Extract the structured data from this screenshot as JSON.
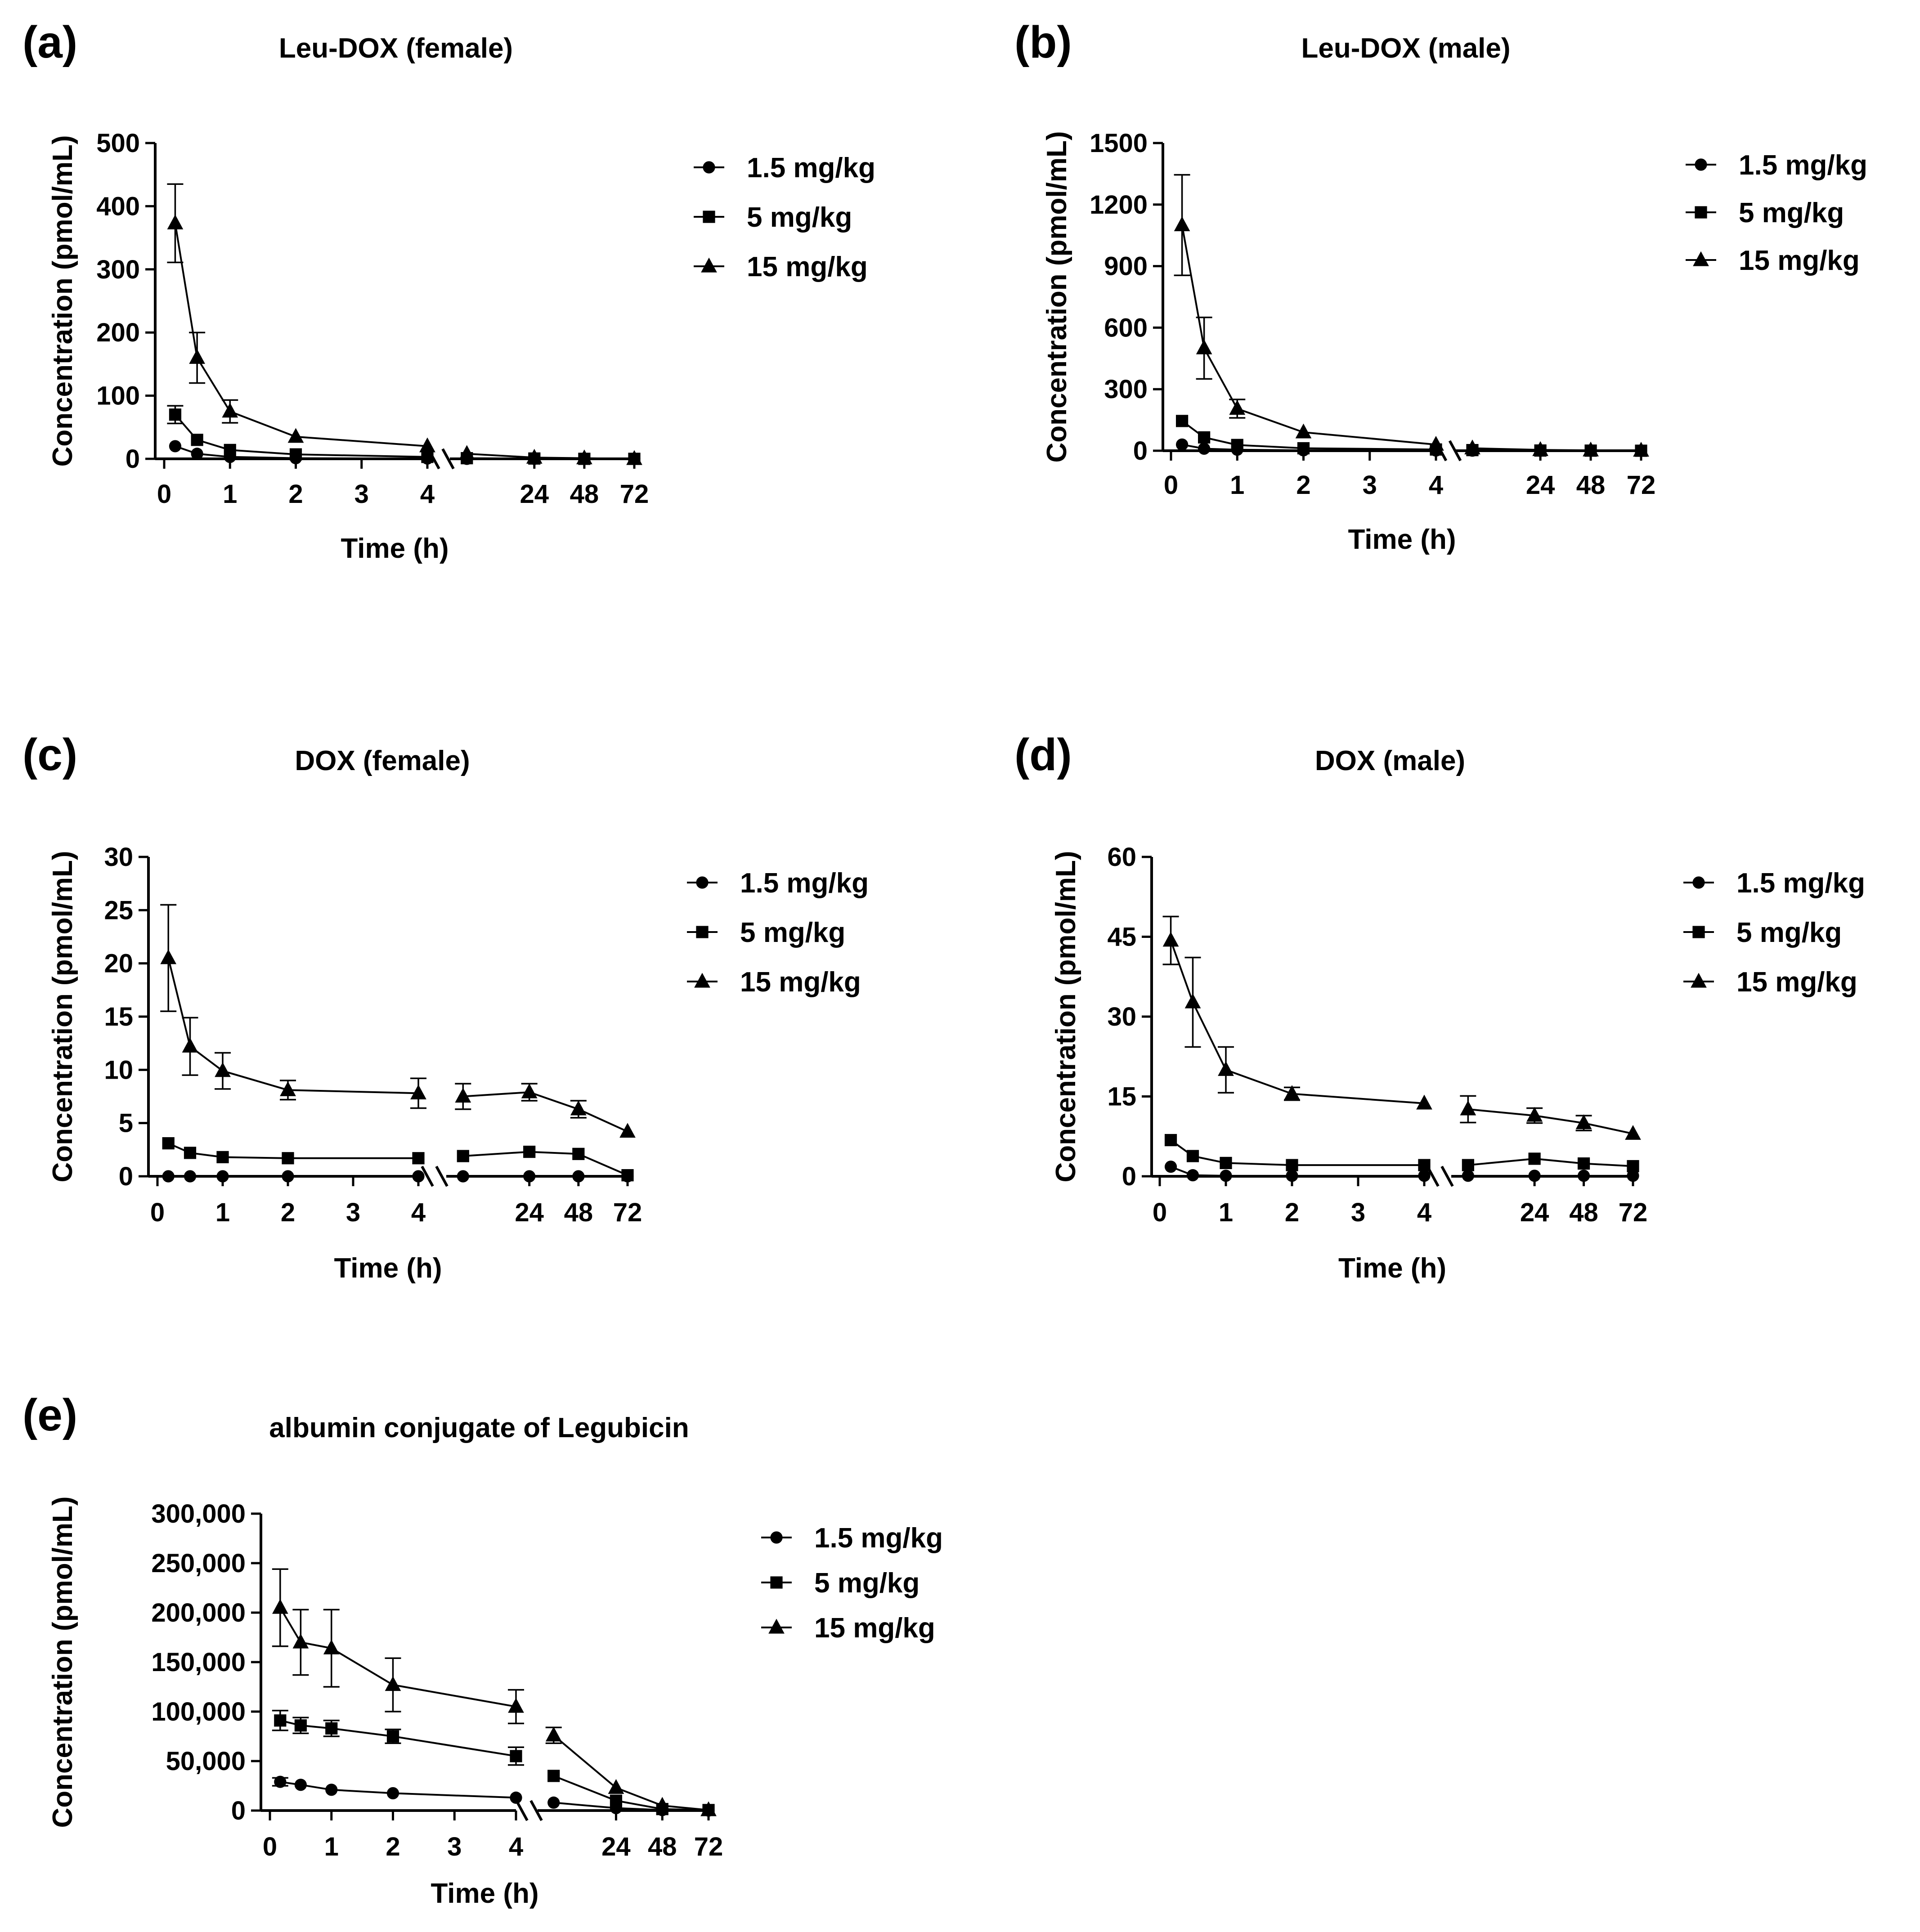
{
  "figure": {
    "panels": [
      {
        "label": "(a)",
        "title": "Leu-DOX (female)"
      },
      {
        "label": "(b)",
        "title": "Leu-DOX (male)"
      },
      {
        "label": "(c)",
        "title": "DOX (female)"
      },
      {
        "label": "(d)",
        "title": "DOX (male)"
      },
      {
        "label": "(e)",
        "title": "albumin conjugate of Legubicin"
      }
    ]
  },
  "colors": {
    "ink": "#000000",
    "background": "#ffffff"
  },
  "chart_data": [
    {
      "type": "line",
      "panel": "(a)",
      "title": "Leu-DOX (female)",
      "xlabel": "Time (h)",
      "ylabel": "Concentration (pmol/mL)",
      "x_axis": "broken",
      "x_segment1_range": [
        0,
        4
      ],
      "x_segment1_ticks": [
        "0",
        "1",
        "2",
        "3",
        "4"
      ],
      "x_segment2_ticks": [
        "24",
        "48",
        "72"
      ],
      "ylim": [
        0,
        500
      ],
      "yticks": [
        "0",
        "100",
        "200",
        "300",
        "400",
        "500"
      ],
      "x": [
        0.167,
        0.5,
        1,
        2,
        4,
        8,
        24,
        48,
        72
      ],
      "legend_position": "right",
      "series": [
        {
          "name": "1.5 mg/kg",
          "marker": "circle",
          "values": [
            20,
            8,
            3,
            1,
            0.5,
            0,
            0,
            0,
            0
          ],
          "error": [
            0,
            0,
            0,
            0,
            0,
            0,
            0,
            0,
            0
          ]
        },
        {
          "name": "5 mg/kg",
          "marker": "square",
          "values": [
            70,
            30,
            14,
            7,
            3,
            1,
            0.5,
            0,
            0
          ],
          "error": [
            14,
            0,
            0,
            0,
            0,
            0,
            0,
            0,
            0
          ]
        },
        {
          "name": "15 mg/kg",
          "marker": "triangle",
          "values": [
            373,
            160,
            75,
            35,
            20,
            8,
            2,
            1,
            0
          ],
          "error": [
            62,
            40,
            18,
            0,
            0,
            0,
            0,
            0,
            0
          ]
        }
      ]
    },
    {
      "type": "line",
      "panel": "(b)",
      "title": "Leu-DOX (male)",
      "xlabel": "Time (h)",
      "ylabel": "Concentration (pmol/mL)",
      "x_axis": "broken",
      "x_segment1_range": [
        0,
        4
      ],
      "x_segment1_ticks": [
        "0",
        "1",
        "2",
        "3",
        "4"
      ],
      "x_segment2_ticks": [
        "24",
        "48",
        "72"
      ],
      "ylim": [
        0,
        1500
      ],
      "yticks": [
        "0",
        "300",
        "600",
        "900",
        "1200",
        "1500"
      ],
      "x": [
        0.167,
        0.5,
        1,
        2,
        4,
        8,
        24,
        48,
        72
      ],
      "legend_position": "right",
      "series": [
        {
          "name": "1.5 mg/kg",
          "marker": "circle",
          "values": [
            30,
            10,
            5,
            2,
            1,
            0.5,
            0,
            0,
            0
          ],
          "error": [
            0,
            0,
            0,
            0,
            0,
            0,
            0,
            0,
            0
          ]
        },
        {
          "name": "5 mg/kg",
          "marker": "square",
          "values": [
            145,
            65,
            28,
            12,
            6,
            3,
            1,
            0.5,
            0
          ],
          "error": [
            0,
            0,
            0,
            0,
            0,
            0,
            0,
            0,
            0
          ]
        },
        {
          "name": "15 mg/kg",
          "marker": "triangle",
          "values": [
            1100,
            500,
            205,
            90,
            30,
            12,
            4,
            2,
            1
          ],
          "error": [
            245,
            150,
            45,
            0,
            0,
            0,
            0,
            0,
            0
          ]
        }
      ]
    },
    {
      "type": "line",
      "panel": "(c)",
      "title": "DOX (female)",
      "xlabel": "Time (h)",
      "ylabel": "Concentration (pmol/mL)",
      "x_axis": "broken",
      "x_segment1_range": [
        0,
        4
      ],
      "x_segment1_ticks": [
        "0",
        "1",
        "2",
        "3",
        "4"
      ],
      "x_segment2_ticks": [
        "24",
        "48",
        "72"
      ],
      "ylim": [
        0,
        30
      ],
      "yticks": [
        "0",
        "5",
        "10",
        "15",
        "20",
        "25",
        "30"
      ],
      "x": [
        0.167,
        0.5,
        1,
        2,
        4,
        8,
        24,
        48,
        72
      ],
      "legend_position": "right",
      "series": [
        {
          "name": "1.5 mg/kg",
          "marker": "circle",
          "values": [
            0,
            0,
            0,
            0,
            0,
            0,
            0,
            0,
            0
          ],
          "error": [
            0,
            0,
            0,
            0,
            0,
            0,
            0,
            0,
            0
          ]
        },
        {
          "name": "5 mg/kg",
          "marker": "square",
          "values": [
            3.1,
            2.2,
            1.8,
            1.7,
            1.7,
            1.9,
            2.3,
            2.1,
            0.1
          ],
          "error": [
            0,
            0,
            0,
            0,
            0,
            0,
            0,
            0,
            0
          ]
        },
        {
          "name": "15 mg/kg",
          "marker": "triangle",
          "values": [
            20.5,
            12.2,
            9.9,
            8.1,
            7.8,
            7.5,
            7.9,
            6.3,
            4.2
          ],
          "error": [
            5.0,
            2.7,
            1.7,
            0.9,
            1.4,
            1.2,
            0.8,
            0.8,
            0
          ]
        }
      ]
    },
    {
      "type": "line",
      "panel": "(d)",
      "title": "DOX (male)",
      "xlabel": "Time (h)",
      "ylabel": "Concentration (pmol/mL)",
      "x_axis": "broken",
      "x_segment1_range": [
        0,
        4
      ],
      "x_segment1_ticks": [
        "0",
        "1",
        "2",
        "3",
        "4"
      ],
      "x_segment2_ticks": [
        "24",
        "48",
        "72"
      ],
      "ylim": [
        0,
        60
      ],
      "yticks": [
        "0",
        "15",
        "30",
        "45",
        "60"
      ],
      "x": [
        0.167,
        0.5,
        1,
        2,
        4,
        8,
        24,
        48,
        72
      ],
      "legend_position": "right",
      "series": [
        {
          "name": "1.5 mg/kg",
          "marker": "circle",
          "values": [
            1.8,
            0.2,
            0.1,
            0.1,
            0.1,
            0.1,
            0.1,
            0.1,
            0.1
          ],
          "error": [
            0,
            0,
            0,
            0,
            0,
            0,
            0,
            0,
            0
          ]
        },
        {
          "name": "5 mg/kg",
          "marker": "square",
          "values": [
            6.8,
            3.8,
            2.5,
            2.1,
            2.1,
            2.1,
            3.3,
            2.4,
            1.9
          ],
          "error": [
            0,
            0,
            0,
            0,
            0,
            0,
            0,
            0,
            0
          ]
        },
        {
          "name": "15 mg/kg",
          "marker": "triangle",
          "values": [
            44.3,
            32.7,
            20,
            15.5,
            13.7,
            12.6,
            11.4,
            10,
            8
          ],
          "error": [
            4.5,
            8.4,
            4.3,
            1.2,
            0,
            2.5,
            1.4,
            1.4,
            0
          ]
        }
      ]
    },
    {
      "type": "line",
      "panel": "(e)",
      "title": "albumin conjugate of Legubicin",
      "xlabel": "Time (h)",
      "ylabel": "Concentration (pmol/mL)",
      "x_axis": "broken",
      "x_segment1_range": [
        0,
        4
      ],
      "x_segment1_ticks": [
        "0",
        "1",
        "2",
        "3",
        "4"
      ],
      "x_segment2_ticks": [
        "24",
        "48",
        "72"
      ],
      "ylim": [
        0,
        300000
      ],
      "yticks": [
        "0",
        "50,000",
        "100,000",
        "150,000",
        "200,000",
        "250,000",
        "300,000"
      ],
      "x": [
        0.167,
        0.5,
        1,
        2,
        4,
        8,
        24,
        48,
        72
      ],
      "legend_position": "right",
      "series": [
        {
          "name": "1.5 mg/kg",
          "marker": "circle",
          "values": [
            29000,
            26000,
            21000,
            17500,
            13000,
            8000,
            2500,
            500,
            0
          ],
          "error": [
            4000,
            0,
            0,
            0,
            0,
            0,
            0,
            0,
            0
          ]
        },
        {
          "name": "5 mg/kg",
          "marker": "square",
          "values": [
            91000,
            86000,
            83000,
            75000,
            55000,
            35000,
            10000,
            1500,
            500
          ],
          "error": [
            10000,
            8000,
            8000,
            7000,
            9000,
            0,
            0,
            0,
            0
          ]
        },
        {
          "name": "15 mg/kg",
          "marker": "triangle",
          "values": [
            205000,
            170000,
            164000,
            127000,
            105000,
            76000,
            23000,
            5000,
            500
          ],
          "error": [
            39000,
            33000,
            39000,
            27000,
            17000,
            8000,
            0,
            0,
            0
          ]
        }
      ]
    }
  ]
}
